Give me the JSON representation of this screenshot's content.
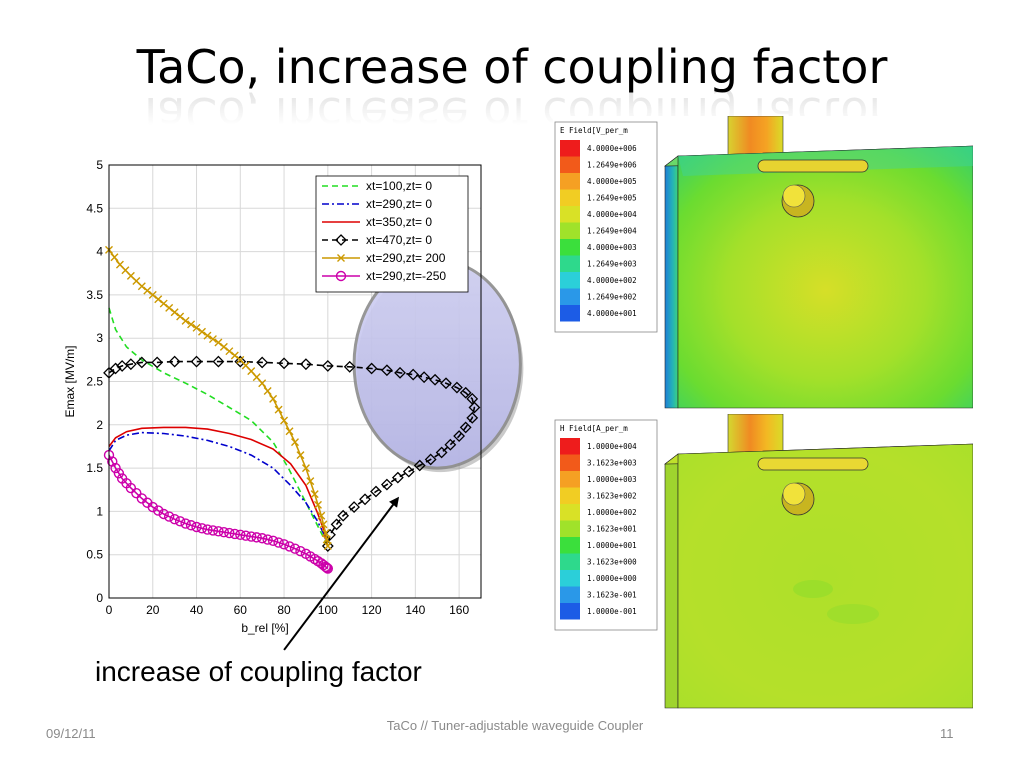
{
  "slide": {
    "title": "TaCo, increase of coupling factor",
    "caption": "increase of coupling factor",
    "footer_date": "09/12/11",
    "footer_center": "TaCo // Tuner-adjustable waveguide Coupler",
    "page_number": "11"
  },
  "chart_data": {
    "type": "line",
    "xlabel": "b_rel [%]",
    "ylabel": "Emax [MV/m]",
    "xlim": [
      0,
      170
    ],
    "ylim": [
      0,
      5
    ],
    "xticks": [
      "0",
      "20",
      "40",
      "60",
      "80",
      "100",
      "120",
      "140",
      "160"
    ],
    "yticks": [
      "0",
      "0.5",
      "1",
      "1.5",
      "2",
      "2.5",
      "3",
      "3.5",
      "4",
      "4.5",
      "5"
    ],
    "grid": true,
    "legend_position": "top-right",
    "series": [
      {
        "name": "xt=100,zt=  0",
        "color": "#22dd22",
        "dash": "6,4",
        "marker": "none",
        "points": [
          [
            0,
            3.35
          ],
          [
            3,
            3.1
          ],
          [
            8,
            2.9
          ],
          [
            15,
            2.75
          ],
          [
            25,
            2.6
          ],
          [
            35,
            2.48
          ],
          [
            45,
            2.35
          ],
          [
            55,
            2.2
          ],
          [
            65,
            2.05
          ],
          [
            75,
            1.8
          ],
          [
            82,
            1.5
          ],
          [
            88,
            1.2
          ],
          [
            93,
            0.95
          ],
          [
            97,
            0.75
          ],
          [
            100,
            0.6
          ]
        ]
      },
      {
        "name": "xt=290,zt=  0",
        "color": "#0000cc",
        "dash": "7,3,2,3",
        "marker": "none",
        "points": [
          [
            0,
            1.7
          ],
          [
            3,
            1.82
          ],
          [
            8,
            1.88
          ],
          [
            15,
            1.91
          ],
          [
            25,
            1.9
          ],
          [
            35,
            1.87
          ],
          [
            45,
            1.82
          ],
          [
            55,
            1.75
          ],
          [
            65,
            1.65
          ],
          [
            75,
            1.5
          ],
          [
            83,
            1.3
          ],
          [
            90,
            1.1
          ],
          [
            95,
            0.9
          ],
          [
            98,
            0.75
          ],
          [
            100,
            0.6
          ]
        ]
      },
      {
        "name": "xt=350,zt=  0",
        "color": "#dd0000",
        "dash": "",
        "marker": "none",
        "points": [
          [
            0,
            1.75
          ],
          [
            3,
            1.85
          ],
          [
            8,
            1.92
          ],
          [
            15,
            1.96
          ],
          [
            25,
            1.97
          ],
          [
            35,
            1.97
          ],
          [
            45,
            1.95
          ],
          [
            55,
            1.9
          ],
          [
            65,
            1.83
          ],
          [
            75,
            1.72
          ],
          [
            83,
            1.55
          ],
          [
            90,
            1.3
          ],
          [
            95,
            1.0
          ],
          [
            98,
            0.8
          ],
          [
            100,
            0.6
          ]
        ]
      },
      {
        "name": "xt=470,zt=  0",
        "color": "#000000",
        "dash": "6,4",
        "marker": "diamond",
        "points": [
          [
            0,
            2.6
          ],
          [
            3,
            2.65
          ],
          [
            6,
            2.68
          ],
          [
            10,
            2.7
          ],
          [
            15,
            2.72
          ],
          [
            22,
            2.72
          ],
          [
            30,
            2.73
          ],
          [
            40,
            2.73
          ],
          [
            50,
            2.73
          ],
          [
            60,
            2.73
          ],
          [
            70,
            2.72
          ],
          [
            80,
            2.71
          ],
          [
            90,
            2.7
          ],
          [
            100,
            2.68
          ],
          [
            110,
            2.67
          ],
          [
            120,
            2.65
          ],
          [
            127,
            2.63
          ],
          [
            133,
            2.6
          ],
          [
            139,
            2.58
          ],
          [
            144,
            2.55
          ],
          [
            149,
            2.52
          ],
          [
            154,
            2.48
          ],
          [
            159,
            2.43
          ],
          [
            163,
            2.37
          ],
          [
            166,
            2.3
          ],
          [
            167,
            2.2
          ],
          [
            166,
            2.08
          ],
          [
            163,
            1.97
          ],
          [
            160,
            1.87
          ],
          [
            156,
            1.77
          ],
          [
            152,
            1.68
          ],
          [
            147,
            1.6
          ],
          [
            142,
            1.53
          ],
          [
            137,
            1.46
          ],
          [
            132,
            1.39
          ],
          [
            127,
            1.31
          ],
          [
            122,
            1.23
          ],
          [
            117,
            1.14
          ],
          [
            112,
            1.05
          ],
          [
            107,
            0.95
          ],
          [
            104,
            0.85
          ],
          [
            101,
            0.73
          ],
          [
            100,
            0.6
          ]
        ]
      },
      {
        "name": "xt=290,zt= 200",
        "color": "#cc9900",
        "dash": "",
        "marker": "x",
        "points": [
          [
            0,
            4.02
          ],
          [
            5,
            3.85
          ],
          [
            10,
            3.72
          ],
          [
            15,
            3.6
          ],
          [
            20,
            3.5
          ],
          [
            25,
            3.4
          ],
          [
            30,
            3.3
          ],
          [
            35,
            3.2
          ],
          [
            40,
            3.12
          ],
          [
            45,
            3.03
          ],
          [
            50,
            2.95
          ],
          [
            55,
            2.85
          ],
          [
            60,
            2.75
          ],
          [
            65,
            2.62
          ],
          [
            70,
            2.48
          ],
          [
            75,
            2.3
          ],
          [
            80,
            2.05
          ],
          [
            85,
            1.8
          ],
          [
            90,
            1.5
          ],
          [
            94,
            1.2
          ],
          [
            97,
            0.95
          ],
          [
            99,
            0.75
          ],
          [
            100,
            0.6
          ]
        ]
      },
      {
        "name": "xt=290,zt=-250",
        "color": "#cc00aa",
        "dash": "",
        "marker": "circle",
        "points": [
          [
            0,
            1.65
          ],
          [
            3,
            1.5
          ],
          [
            6,
            1.38
          ],
          [
            10,
            1.27
          ],
          [
            15,
            1.15
          ],
          [
            20,
            1.05
          ],
          [
            25,
            0.97
          ],
          [
            30,
            0.91
          ],
          [
            35,
            0.86
          ],
          [
            40,
            0.82
          ],
          [
            45,
            0.79
          ],
          [
            50,
            0.77
          ],
          [
            55,
            0.75
          ],
          [
            60,
            0.73
          ],
          [
            65,
            0.71
          ],
          [
            70,
            0.69
          ],
          [
            75,
            0.66
          ],
          [
            80,
            0.62
          ],
          [
            85,
            0.57
          ],
          [
            90,
            0.51
          ],
          [
            94,
            0.45
          ],
          [
            97,
            0.4
          ],
          [
            99,
            0.36
          ],
          [
            100,
            0.34
          ]
        ]
      }
    ],
    "annotation_ellipse": {
      "cx": 150,
      "cy": 2.7,
      "rx": 38,
      "ry": 1.2,
      "fill": "#b9b9ec",
      "stroke": "#999999"
    },
    "annotation_arrow": {
      "from": [
        80,
        -0.6
      ],
      "to": [
        132,
        1.15
      ]
    }
  },
  "sim_top": {
    "title": "E Field[V_per_m",
    "legend": [
      "4.0000e+006",
      "1.2649e+006",
      "4.0000e+005",
      "1.2649e+005",
      "4.0000e+004",
      "1.2649e+004",
      "4.0000e+003",
      "1.2649e+003",
      "4.0000e+002",
      "1.2649e+002",
      "4.0000e+001"
    ]
  },
  "sim_bottom": {
    "title": "H Field[A_per_m",
    "legend": [
      "1.0000e+004",
      "3.1623e+003",
      "1.0000e+003",
      "3.1623e+002",
      "1.0000e+002",
      "3.1623e+001",
      "1.0000e+001",
      "3.1623e+000",
      "1.0000e+000",
      "3.1623e-001",
      "1.0000e-001"
    ]
  },
  "colors": {
    "scale": [
      "#ee1c1c",
      "#f25a1a",
      "#f5a023",
      "#f1cd23",
      "#d9e126",
      "#a0e22a",
      "#3bdf3c",
      "#2ed98c",
      "#2bcfd9",
      "#2a98e8",
      "#1c5ce6",
      "#1010d8"
    ]
  }
}
